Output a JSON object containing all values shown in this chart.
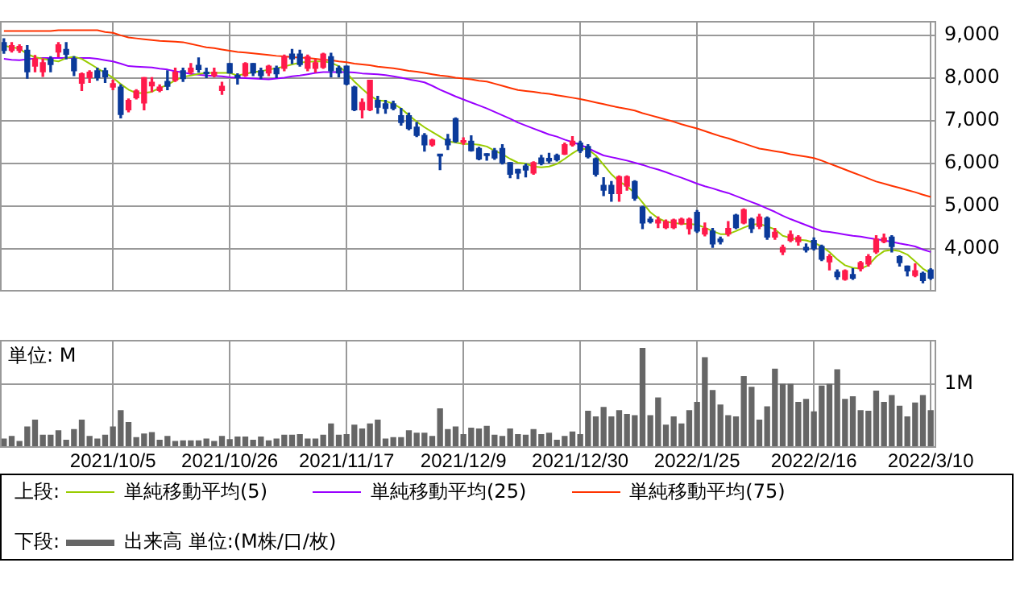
{
  "chart_data": [
    {
      "type": "candlestick",
      "categories": [
        null,
        null,
        null,
        null,
        null,
        null,
        null,
        null,
        null,
        null,
        null,
        null,
        null,
        null,
        "2021/10/5",
        null,
        null,
        null,
        null,
        null,
        null,
        null,
        null,
        null,
        null,
        null,
        null,
        null,
        null,
        "2021/10/26",
        null,
        null,
        null,
        null,
        null,
        null,
        null,
        null,
        null,
        null,
        null,
        null,
        null,
        null,
        "2021/11/17",
        null,
        null,
        null,
        null,
        null,
        null,
        null,
        null,
        null,
        null,
        null,
        null,
        null,
        null,
        "2021/12/9",
        null,
        null,
        null,
        null,
        null,
        null,
        null,
        null,
        null,
        null,
        null,
        null,
        null,
        null,
        "2021/12/30",
        null,
        null,
        null,
        null,
        null,
        null,
        null,
        null,
        null,
        null,
        null,
        null,
        null,
        null,
        "2022/1/25",
        null,
        null,
        null,
        null,
        null,
        null,
        null,
        null,
        null,
        null,
        null,
        null,
        null,
        null,
        "2022/2/16",
        null,
        null,
        null,
        null,
        null,
        null,
        null,
        null,
        null,
        null,
        null,
        null,
        null,
        null,
        "2022/3/10"
      ],
      "ohlc": [
        [
          8830,
          8920,
          8580,
          8650
        ],
        [
          8650,
          8830,
          8610,
          8760
        ],
        [
          8650,
          8780,
          8600,
          8740
        ],
        [
          8650,
          8760,
          8000,
          8150
        ],
        [
          8280,
          8530,
          8150,
          8450
        ],
        [
          8150,
          8450,
          8040,
          8360
        ],
        [
          8450,
          8500,
          8150,
          8320
        ],
        [
          8610,
          8830,
          8500,
          8780
        ],
        [
          8670,
          8830,
          8450,
          8560
        ],
        [
          8450,
          8500,
          8060,
          8170
        ],
        [
          7880,
          8120,
          7710,
          8100
        ],
        [
          8010,
          8170,
          7900,
          8140
        ],
        [
          8170,
          8230,
          7950,
          8010
        ],
        [
          8170,
          8230,
          7900,
          8030
        ],
        [
          7790,
          7950,
          7730,
          7870
        ],
        [
          7790,
          7840,
          7070,
          7150
        ],
        [
          7260,
          7510,
          7210,
          7480
        ],
        [
          7540,
          7730,
          7510,
          7700
        ],
        [
          7420,
          8010,
          7260,
          8010
        ],
        [
          7820,
          8010,
          7680,
          7900
        ],
        [
          7710,
          7840,
          7680,
          7790
        ],
        [
          7920,
          8170,
          7730,
          7810
        ],
        [
          7950,
          8230,
          7920,
          8140
        ],
        [
          8170,
          8230,
          7920,
          7990
        ],
        [
          8140,
          8340,
          8100,
          8230
        ],
        [
          8300,
          8470,
          8140,
          8200
        ],
        [
          8130,
          8230,
          8010,
          8100
        ],
        [
          8060,
          8230,
          8030,
          8140
        ],
        [
          7710,
          7900,
          7620,
          7810
        ],
        [
          8340,
          8340,
          8120,
          8120
        ],
        [
          8060,
          8100,
          7860,
          8010
        ],
        [
          8060,
          8360,
          8040,
          8340
        ],
        [
          8340,
          8340,
          8060,
          8120
        ],
        [
          8170,
          8230,
          7990,
          8060
        ],
        [
          8120,
          8300,
          8060,
          8280
        ],
        [
          8230,
          8280,
          8010,
          8100
        ],
        [
          8230,
          8540,
          8170,
          8500
        ],
        [
          8560,
          8670,
          8340,
          8450
        ],
        [
          8560,
          8650,
          8280,
          8320
        ],
        [
          8230,
          8540,
          8170,
          8500
        ],
        [
          8230,
          8430,
          8140,
          8360
        ],
        [
          8250,
          8580,
          8230,
          8560
        ],
        [
          8500,
          8580,
          8030,
          8170
        ],
        [
          8230,
          8280,
          8030,
          8120
        ],
        [
          8280,
          8280,
          7840,
          7860
        ],
        [
          7790,
          7810,
          7240,
          7260
        ],
        [
          7260,
          7510,
          7070,
          7430
        ],
        [
          7260,
          7950,
          7240,
          7950
        ],
        [
          7480,
          7570,
          7180,
          7320
        ],
        [
          7400,
          7480,
          7180,
          7290
        ],
        [
          7400,
          7460,
          7260,
          7290
        ],
        [
          7120,
          7290,
          6900,
          6960
        ],
        [
          7120,
          7180,
          6790,
          6820
        ],
        [
          6850,
          6960,
          6630,
          6660
        ],
        [
          6660,
          6700,
          6290,
          6440
        ],
        [
          6440,
          6570,
          6410,
          6550
        ],
        [
          6190,
          6200,
          5860,
          6180
        ],
        [
          6570,
          6680,
          6330,
          6440
        ],
        [
          7050,
          7070,
          6500,
          6520
        ],
        [
          6500,
          6600,
          6450,
          6530
        ],
        [
          6520,
          6650,
          6290,
          6300
        ],
        [
          6350,
          6380,
          6090,
          6110
        ],
        [
          6200,
          6230,
          6080,
          6190
        ],
        [
          6300,
          6350,
          6100,
          6130
        ],
        [
          6350,
          6440,
          5990,
          6020
        ],
        [
          6020,
          6020,
          5670,
          5750
        ],
        [
          5860,
          5860,
          5650,
          5780
        ],
        [
          5940,
          5990,
          5690,
          5850
        ],
        [
          5780,
          6040,
          5750,
          6020
        ],
        [
          6130,
          6190,
          5970,
          6000
        ],
        [
          6120,
          6240,
          6020,
          6060
        ],
        [
          6190,
          6220,
          6060,
          6090
        ],
        [
          6220,
          6480,
          6210,
          6440
        ],
        [
          6440,
          6630,
          6410,
          6520
        ],
        [
          6480,
          6520,
          6260,
          6300
        ],
        [
          6400,
          6440,
          6130,
          6160
        ],
        [
          6110,
          6130,
          5710,
          5750
        ],
        [
          5490,
          5670,
          5250,
          5380
        ],
        [
          5490,
          5580,
          5120,
          5300
        ],
        [
          5300,
          5710,
          5120,
          5690
        ],
        [
          5470,
          5710,
          5380,
          5690
        ],
        [
          5580,
          5600,
          5140,
          5190
        ],
        [
          4980,
          5000,
          4480,
          4610
        ],
        [
          4700,
          4750,
          4610,
          4640
        ],
        [
          4610,
          4750,
          4500,
          4680
        ],
        [
          4500,
          4680,
          4480,
          4640
        ],
        [
          4500,
          4700,
          4480,
          4680
        ],
        [
          4590,
          4720,
          4570,
          4700
        ],
        [
          4480,
          4720,
          4350,
          4700
        ],
        [
          4860,
          4900,
          4390,
          4420
        ],
        [
          4350,
          4610,
          4310,
          4480
        ],
        [
          4420,
          4480,
          4040,
          4120
        ],
        [
          4230,
          4280,
          4120,
          4170
        ],
        [
          4350,
          4640,
          4310,
          4480
        ],
        [
          4790,
          4810,
          4480,
          4500
        ],
        [
          4610,
          4940,
          4590,
          4920
        ],
        [
          4700,
          4720,
          4390,
          4480
        ],
        [
          4530,
          4810,
          4480,
          4750
        ],
        [
          4720,
          4750,
          4230,
          4280
        ],
        [
          4280,
          4480,
          4230,
          4390
        ],
        [
          3930,
          4090,
          3870,
          4040
        ],
        [
          4200,
          4420,
          4170,
          4340
        ],
        [
          4170,
          4310,
          4090,
          4280
        ],
        [
          4040,
          4120,
          3930,
          3980
        ],
        [
          4200,
          4260,
          3980,
          4010
        ],
        [
          4060,
          4090,
          3730,
          3760
        ],
        [
          3700,
          3870,
          3510,
          3820
        ],
        [
          3460,
          3510,
          3290,
          3350
        ],
        [
          3290,
          3510,
          3270,
          3490
        ],
        [
          3400,
          3540,
          3290,
          3320
        ],
        [
          3540,
          3710,
          3490,
          3680
        ],
        [
          3650,
          3870,
          3600,
          3820
        ],
        [
          3930,
          4310,
          3900,
          4230
        ],
        [
          4170,
          4350,
          4150,
          4260
        ],
        [
          4280,
          4310,
          3930,
          4060
        ],
        [
          3820,
          3840,
          3600,
          3680
        ],
        [
          3600,
          3600,
          3370,
          3490
        ],
        [
          3380,
          3650,
          3350,
          3490
        ],
        [
          3430,
          3460,
          3210,
          3260
        ],
        [
          3510,
          3540,
          3290,
          3320
        ]
      ],
      "colors": [
        "#0b3a9a",
        "#ff1a4b",
        "#ff1a4b",
        "#0b3a9a",
        "#ff1a4b",
        "#ff1a4b",
        "#0b3a9a",
        "#ff1a4b",
        "#0b3a9a",
        "#0b3a9a",
        "#ff1a4b",
        "#ff1a4b",
        "#0b3a9a",
        "#0b3a9a",
        "#ff1a4b",
        "#0b3a9a",
        "#ff1a4b",
        "#ff1a4b",
        "#ff1a4b",
        "#ff1a4b",
        "#ff1a4b",
        "#0b3a9a",
        "#ff1a4b",
        "#0b3a9a",
        "#ff1a4b",
        "#0b3a9a",
        "#0b3a9a",
        "#ff1a4b",
        "#ff1a4b",
        "#0b3a9a",
        "#0b3a9a",
        "#ff1a4b",
        "#0b3a9a",
        "#0b3a9a",
        "#ff1a4b",
        "#0b3a9a",
        "#ff1a4b",
        "#0b3a9a",
        "#0b3a9a",
        "#ff1a4b",
        "#ff1a4b",
        "#ff1a4b",
        "#0b3a9a",
        "#0b3a9a",
        "#0b3a9a",
        "#0b3a9a",
        "#ff1a4b",
        "#ff1a4b",
        "#0b3a9a",
        "#0b3a9a",
        "#0b3a9a",
        "#0b3a9a",
        "#0b3a9a",
        "#0b3a9a",
        "#0b3a9a",
        "#ff1a4b",
        "#0b3a9a",
        "#0b3a9a",
        "#0b3a9a",
        "#ff1a4b",
        "#0b3a9a",
        "#0b3a9a",
        "#0b3a9a",
        "#0b3a9a",
        "#0b3a9a",
        "#0b3a9a",
        "#0b3a9a",
        "#0b3a9a",
        "#ff1a4b",
        "#0b3a9a",
        "#0b3a9a",
        "#0b3a9a",
        "#ff1a4b",
        "#ff1a4b",
        "#0b3a9a",
        "#0b3a9a",
        "#0b3a9a",
        "#0b3a9a",
        "#0b3a9a",
        "#ff1a4b",
        "#ff1a4b",
        "#0b3a9a",
        "#0b3a9a",
        "#0b3a9a",
        "#ff1a4b",
        "#ff1a4b",
        "#ff1a4b",
        "#ff1a4b",
        "#ff1a4b",
        "#0b3a9a",
        "#ff1a4b",
        "#0b3a9a",
        "#0b3a9a",
        "#ff1a4b",
        "#0b3a9a",
        "#ff1a4b",
        "#0b3a9a",
        "#ff1a4b",
        "#0b3a9a",
        "#ff1a4b",
        "#ff1a4b",
        "#ff1a4b",
        "#ff1a4b",
        "#0b3a9a",
        "#0b3a9a",
        "#0b3a9a",
        "#ff1a4b",
        "#0b3a9a",
        "#ff1a4b",
        "#0b3a9a",
        "#ff1a4b",
        "#ff1a4b",
        "#ff1a4b",
        "#ff1a4b",
        "#0b3a9a",
        "#0b3a9a",
        "#0b3a9a",
        "#ff1a4b",
        "#0b3a9a",
        "#0b3a9a"
      ],
      "series": [
        {
          "name": "単純移動平均(5)",
          "type": "line",
          "color": "#99cc00",
          "values": [
            8760,
            8720,
            8690,
            8560,
            8490,
            8450,
            8420,
            8390,
            8470,
            8500,
            8450,
            8340,
            8230,
            8120,
            8010,
            7860,
            7730,
            7650,
            7650,
            7680,
            7770,
            7840,
            7950,
            8030,
            8060,
            8100,
            8120,
            8120,
            8120,
            8120,
            8060,
            8100,
            8140,
            8160,
            8200,
            8230,
            8270,
            8320,
            8360,
            8380,
            8390,
            8390,
            8360,
            8280,
            8120,
            7920,
            7750,
            7590,
            7480,
            7460,
            7400,
            7290,
            7130,
            6980,
            6850,
            6740,
            6630,
            6520,
            6490,
            6460,
            6460,
            6440,
            6400,
            6300,
            6220,
            6110,
            6020,
            6000,
            5930,
            5910,
            5930,
            5990,
            6110,
            6240,
            6350,
            6330,
            6190,
            5970,
            5750,
            5580,
            5470,
            5310,
            5090,
            4860,
            4720,
            4640,
            4610,
            4590,
            4590,
            4570,
            4500,
            4420,
            4350,
            4350,
            4420,
            4500,
            4570,
            4590,
            4530,
            4460,
            4310,
            4260,
            4220,
            4200,
            4150,
            4060,
            3930,
            3760,
            3620,
            3560,
            3540,
            3620,
            3820,
            3950,
            3980,
            3950,
            3870,
            3710,
            3540,
            3430
          ]
        },
        {
          "name": "単純移動平均(25)",
          "type": "line",
          "color": "#9900ff",
          "values": [
            8450,
            8430,
            8420,
            8440,
            8460,
            8470,
            8470,
            8470,
            8470,
            8470,
            8470,
            8470,
            8450,
            8420,
            8390,
            8340,
            8280,
            8270,
            8260,
            8250,
            8220,
            8200,
            8160,
            8130,
            8100,
            8080,
            8060,
            8050,
            8040,
            8020,
            8010,
            8000,
            7990,
            7980,
            7970,
            7990,
            8010,
            8040,
            8060,
            8090,
            8120,
            8140,
            8140,
            8140,
            8140,
            8130,
            8110,
            8100,
            8090,
            8070,
            8040,
            8010,
            7970,
            7940,
            7900,
            7820,
            7730,
            7650,
            7570,
            7500,
            7430,
            7360,
            7290,
            7210,
            7130,
            7050,
            6960,
            6890,
            6820,
            6750,
            6680,
            6630,
            6560,
            6500,
            6440,
            6360,
            6270,
            6190,
            6150,
            6110,
            6070,
            6020,
            5970,
            5910,
            5860,
            5800,
            5730,
            5670,
            5600,
            5530,
            5470,
            5420,
            5360,
            5310,
            5240,
            5170,
            5100,
            5030,
            4950,
            4870,
            4780,
            4700,
            4630,
            4560,
            4490,
            4420,
            4400,
            4370,
            4340,
            4310,
            4290,
            4260,
            4230,
            4200,
            4170,
            4130,
            4100,
            4060,
            3990,
            3930
          ]
        },
        {
          "name": "単純移動平均(75)",
          "type": "line",
          "color": "#ff3300",
          "values": [
            9100,
            9100,
            9100,
            9100,
            9100,
            9100,
            9100,
            9120,
            9120,
            9120,
            9120,
            9120,
            9120,
            9080,
            9060,
            9000,
            8950,
            8930,
            8910,
            8890,
            8870,
            8860,
            8850,
            8840,
            8800,
            8760,
            8720,
            8700,
            8670,
            8640,
            8610,
            8600,
            8580,
            8560,
            8540,
            8520,
            8510,
            8490,
            8480,
            8470,
            8450,
            8430,
            8420,
            8390,
            8370,
            8340,
            8320,
            8300,
            8270,
            8250,
            8230,
            8200,
            8170,
            8150,
            8120,
            8090,
            8060,
            8040,
            8010,
            7990,
            7970,
            7940,
            7920,
            7870,
            7820,
            7770,
            7720,
            7700,
            7680,
            7650,
            7630,
            7600,
            7570,
            7540,
            7510,
            7470,
            7430,
            7390,
            7350,
            7310,
            7280,
            7240,
            7180,
            7130,
            7080,
            7030,
            6980,
            6920,
            6870,
            6820,
            6760,
            6700,
            6640,
            6590,
            6530,
            6470,
            6410,
            6350,
            6320,
            6290,
            6260,
            6220,
            6190,
            6160,
            6130,
            6070,
            6000,
            5930,
            5860,
            5790,
            5720,
            5650,
            5580,
            5530,
            5480,
            5430,
            5380,
            5330,
            5270,
            5220
          ]
        }
      ],
      "ylim": [
        3050,
        9330
      ],
      "yticks": [
        {
          "value": 4000,
          "label": "4,000"
        },
        {
          "value": 5000,
          "label": "5,000"
        },
        {
          "value": 6000,
          "label": "6,000"
        },
        {
          "value": 7000,
          "label": "7,000"
        },
        {
          "value": 8000,
          "label": "8,000"
        },
        {
          "value": 9000,
          "label": "9,000"
        }
      ],
      "grid": true,
      "tick_labels": "y",
      "legend": "bottom",
      "legend_title": "上段:"
    },
    {
      "type": "bar",
      "ylabel": "単位: M",
      "categories": [
        null,
        null,
        null,
        null,
        null,
        null,
        null,
        null,
        null,
        null,
        null,
        null,
        null,
        null,
        "2021/10/5",
        null,
        null,
        null,
        null,
        null,
        null,
        null,
        null,
        null,
        null,
        null,
        null,
        null,
        null,
        "2021/10/26",
        null,
        null,
        null,
        null,
        null,
        null,
        null,
        null,
        null,
        null,
        null,
        null,
        null,
        null,
        "2021/11/17",
        null,
        null,
        null,
        null,
        null,
        null,
        null,
        null,
        null,
        null,
        null,
        null,
        null,
        null,
        "2021/12/9",
        null,
        null,
        null,
        null,
        null,
        null,
        null,
        null,
        null,
        null,
        null,
        null,
        null,
        null,
        "2021/12/30",
        null,
        null,
        null,
        null,
        null,
        null,
        null,
        null,
        null,
        null,
        null,
        null,
        null,
        null,
        "2022/1/25",
        null,
        null,
        null,
        null,
        null,
        null,
        null,
        null,
        null,
        null,
        null,
        null,
        null,
        null,
        "2022/2/16",
        null,
        null,
        null,
        null,
        null,
        null,
        null,
        null,
        null,
        null,
        null,
        null,
        null,
        null,
        "2022/3/10"
      ],
      "series": [
        {
          "name": "出来高 単位:(M株/口/枚)",
          "color": "#666666",
          "values": [
            0.13,
            0.17,
            0.09,
            0.32,
            0.43,
            0.19,
            0.19,
            0.26,
            0.11,
            0.28,
            0.43,
            0.17,
            0.13,
            0.19,
            0.32,
            0.58,
            0.39,
            0.15,
            0.21,
            0.23,
            0.11,
            0.17,
            0.09,
            0.1,
            0.1,
            0.1,
            0.13,
            0.09,
            0.17,
            0.12,
            0.16,
            0.16,
            0.11,
            0.16,
            0.1,
            0.13,
            0.19,
            0.19,
            0.2,
            0.13,
            0.13,
            0.19,
            0.37,
            0.19,
            0.2,
            0.35,
            0.29,
            0.37,
            0.43,
            0.13,
            0.15,
            0.15,
            0.26,
            0.22,
            0.22,
            0.17,
            0.61,
            0.28,
            0.32,
            0.2,
            0.3,
            0.29,
            0.33,
            0.19,
            0.17,
            0.29,
            0.2,
            0.19,
            0.28,
            0.2,
            0.22,
            0.11,
            0.17,
            0.24,
            0.2,
            0.57,
            0.48,
            0.63,
            0.48,
            0.58,
            0.52,
            0.5,
            1.57,
            0.5,
            0.78,
            0.35,
            0.48,
            0.37,
            0.58,
            0.71,
            1.42,
            0.9,
            0.67,
            0.5,
            0.48,
            1.12,
            0.95,
            0.43,
            0.64,
            1.24,
            1.0,
            1.0,
            0.71,
            0.76,
            0.56,
            0.97,
            1.0,
            1.23,
            0.76,
            0.8,
            0.58,
            0.57,
            0.89,
            0.71,
            0.82,
            0.65,
            0.48,
            0.7,
            0.82,
            0.58
          ]
        }
      ],
      "ylim": [
        0,
        1.7
      ],
      "yticks": [
        {
          "value": 0,
          "label": null
        },
        {
          "value": 1,
          "label": "1M"
        }
      ],
      "grid": true,
      "legend": "bottom",
      "legend_title": "下段:"
    }
  ]
}
